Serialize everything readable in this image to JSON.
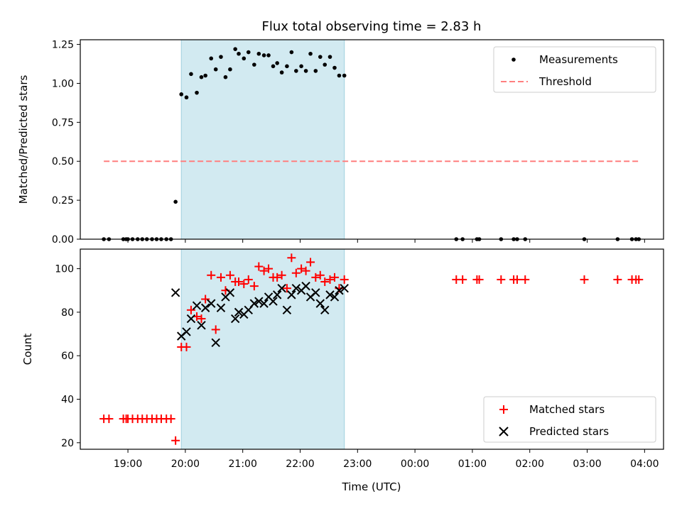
{
  "chart_data": {
    "type": "scatter",
    "title": "Flux total observing time = 2.83 h",
    "xlabel": "Time (UTC)",
    "x_tick_labels": [
      "19:00",
      "20:00",
      "21:00",
      "22:00",
      "23:00",
      "00:00",
      "01:00",
      "02:00",
      "03:00",
      "04:00"
    ],
    "x_ticks_hours": [
      19,
      20,
      21,
      22,
      23,
      24,
      25,
      26,
      27,
      28
    ],
    "xlim_hours": [
      18.17,
      28.33
    ],
    "shaded_interval_hours": [
      19.93,
      22.77
    ],
    "shade_color": "#add8e6",
    "panels": [
      {
        "ylabel": "Matched/Predicted stars",
        "ylim": [
          0,
          1.28
        ],
        "y_ticks": [
          0.0,
          0.25,
          0.5,
          0.75,
          1.0,
          1.25
        ],
        "y_tick_labels": [
          "0.00",
          "0.25",
          "0.50",
          "0.75",
          "1.00",
          "1.25"
        ],
        "legend": {
          "position": "upper right",
          "entries": [
            "Measurements",
            "Threshold"
          ]
        },
        "series": [
          {
            "name": "Measurements",
            "marker": "dot",
            "color": "#000000",
            "x": [
              18.58,
              18.67,
              18.92,
              18.97,
              19.0,
              19.08,
              19.17,
              19.25,
              19.33,
              19.42,
              19.5,
              19.58,
              19.67,
              19.75,
              19.83,
              19.93,
              20.02,
              20.1,
              20.2,
              20.28,
              20.35,
              20.45,
              20.53,
              20.62,
              20.7,
              20.78,
              20.87,
              20.93,
              21.02,
              21.1,
              21.2,
              21.28,
              21.37,
              21.45,
              21.53,
              21.6,
              21.68,
              21.77,
              21.85,
              21.93,
              22.02,
              22.1,
              22.18,
              22.27,
              22.35,
              22.43,
              22.52,
              22.6,
              22.68,
              22.77,
              24.72,
              24.83,
              25.08,
              25.12,
              25.5,
              25.72,
              25.78,
              25.92,
              26.95,
              27.53,
              27.78,
              27.85,
              27.9
            ],
            "y": [
              0,
              0,
              0,
              0,
              0,
              0,
              0,
              0,
              0,
              0,
              0,
              0,
              0,
              0,
              0.24,
              0.93,
              0.91,
              1.06,
              0.94,
              1.04,
              1.05,
              1.16,
              1.09,
              1.17,
              1.04,
              1.09,
              1.22,
              1.19,
              1.16,
              1.2,
              1.12,
              1.19,
              1.18,
              1.18,
              1.11,
              1.13,
              1.07,
              1.11,
              1.2,
              1.08,
              1.11,
              1.08,
              1.19,
              1.08,
              1.17,
              1.12,
              1.17,
              1.1,
              1.05,
              1.05,
              0,
              0,
              0,
              0,
              0,
              0,
              0,
              0,
              0,
              0,
              0,
              0,
              0
            ]
          },
          {
            "name": "Threshold",
            "marker": "dashed-line",
            "color": "#ff7f7f",
            "x": [
              18.58,
              27.9
            ],
            "y": [
              0.5,
              0.5
            ]
          }
        ]
      },
      {
        "ylabel": "Count",
        "ylim": [
          17,
          109
        ],
        "y_ticks": [
          20,
          40,
          60,
          80,
          100
        ],
        "y_tick_labels": [
          "20",
          "40",
          "60",
          "80",
          "100"
        ],
        "legend": {
          "position": "lower right",
          "entries": [
            "Matched stars",
            "Predicted stars"
          ]
        },
        "series": [
          {
            "name": "Matched stars",
            "marker": "plus",
            "color": "#ff0000",
            "x": [
              18.58,
              18.67,
              18.92,
              18.97,
              19.0,
              19.08,
              19.17,
              19.25,
              19.33,
              19.42,
              19.5,
              19.58,
              19.67,
              19.75,
              19.83,
              19.93,
              20.02,
              20.1,
              20.2,
              20.28,
              20.35,
              20.45,
              20.53,
              20.62,
              20.7,
              20.78,
              20.87,
              20.93,
              21.02,
              21.1,
              21.2,
              21.28,
              21.37,
              21.45,
              21.53,
              21.6,
              21.68,
              21.77,
              21.85,
              21.93,
              22.02,
              22.1,
              22.18,
              22.27,
              22.35,
              22.43,
              22.52,
              22.6,
              22.68,
              22.77,
              24.72,
              24.83,
              25.08,
              25.12,
              25.5,
              25.72,
              25.78,
              25.92,
              26.95,
              27.53,
              27.78,
              27.85,
              27.9
            ],
            "y": [
              31,
              31,
              31,
              31,
              31,
              31,
              31,
              31,
              31,
              31,
              31,
              31,
              31,
              31,
              21,
              64,
              64,
              81,
              78,
              77,
              86,
              97,
              72,
              96,
              90,
              97,
              94,
              94,
              93,
              95,
              92,
              101,
              99,
              100,
              96,
              96,
              97,
              91,
              105,
              98,
              100,
              99,
              103,
              96,
              97,
              94,
              95,
              96,
              91,
              95,
              95,
              95,
              95,
              95,
              95,
              95,
              95,
              95,
              95,
              95,
              95,
              95,
              95
            ]
          },
          {
            "name": "Predicted stars",
            "marker": "x",
            "color": "#000000",
            "x": [
              19.83,
              19.93,
              20.02,
              20.1,
              20.2,
              20.28,
              20.35,
              20.45,
              20.53,
              20.62,
              20.7,
              20.78,
              20.87,
              20.93,
              21.02,
              21.1,
              21.2,
              21.28,
              21.37,
              21.45,
              21.53,
              21.6,
              21.68,
              21.77,
              21.85,
              21.93,
              22.02,
              22.1,
              22.18,
              22.27,
              22.35,
              22.43,
              22.52,
              22.6,
              22.68,
              22.77
            ],
            "y": [
              89,
              69,
              71,
              77,
              83,
              74,
              82,
              84,
              66,
              82,
              87,
              89,
              77,
              80,
              79,
              81,
              84,
              85,
              84,
              87,
              85,
              88,
              91,
              81,
              88,
              91,
              90,
              92,
              87,
              89,
              84,
              81,
              88,
              87,
              90,
              91
            ]
          }
        ]
      }
    ]
  }
}
